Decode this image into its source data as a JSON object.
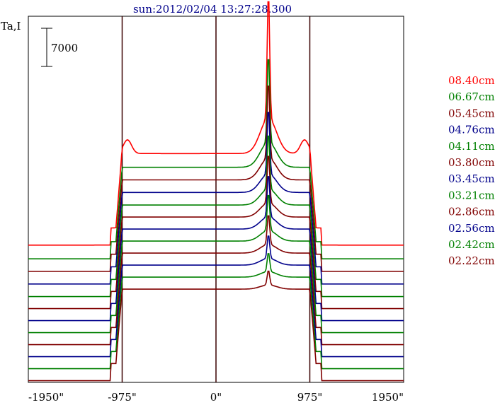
{
  "chart_data": {
    "type": "line",
    "title": "sun:2012/02/04 13:27:28.300",
    "ylabel": "Ta,I",
    "scale_bar_label": "7000",
    "xlim": [
      -1950,
      1950
    ],
    "x_ticks": [
      {
        "value": -1950,
        "label": "-1950\""
      },
      {
        "value": -975,
        "label": "-975\""
      },
      {
        "value": 0,
        "label": "0\""
      },
      {
        "value": 975,
        "label": "975\""
      },
      {
        "value": 1950,
        "label": "1950\""
      }
    ],
    "vertical_lines": [
      -975,
      0,
      975
    ],
    "x": [
      -1950,
      -1600,
      -1300,
      -1100,
      -1040,
      -1000,
      -975,
      -950,
      -900,
      -700,
      -500,
      -300,
      -130,
      -100,
      -60,
      0,
      200,
      300,
      400,
      450,
      500,
      520,
      545,
      565,
      590,
      610,
      640,
      700,
      800,
      900,
      975,
      1030,
      1100,
      1300,
      1600,
      1950
    ],
    "profile_shape": {
      "limb_peak_factor": 0.15,
      "series_peak_heights": [
        11000,
        7800,
        6800,
        5800,
        5000,
        4400,
        3800,
        3300,
        2700,
        2100,
        1700,
        1300
      ],
      "limb_bump_heights": [
        1200,
        0,
        0,
        0,
        0,
        0,
        0,
        0,
        0,
        0,
        0,
        0
      ]
    },
    "series": [
      {
        "name": "08.40cm",
        "color": "#ff0000",
        "offset": 12000
      },
      {
        "name": "06.67cm",
        "color": "#008000",
        "offset": 10800
      },
      {
        "name": "05.45cm",
        "color": "#800000",
        "offset": 9700
      },
      {
        "name": "04.76cm",
        "color": "#00008b",
        "offset": 8600
      },
      {
        "name": "04.11cm",
        "color": "#008000",
        "offset": 7500
      },
      {
        "name": "03.80cm",
        "color": "#800000",
        "offset": 6450
      },
      {
        "name": "03.45cm",
        "color": "#00008b",
        "offset": 5400
      },
      {
        "name": "03.21cm",
        "color": "#008000",
        "offset": 4350
      },
      {
        "name": "02.86cm",
        "color": "#800000",
        "offset": 3300
      },
      {
        "name": "02.56cm",
        "color": "#00008b",
        "offset": 2250
      },
      {
        "name": "02.42cm",
        "color": "#008000",
        "offset": 1200
      },
      {
        "name": "02.22cm",
        "color": "#800000",
        "offset": 150
      }
    ],
    "ylim": [
      0,
      32000
    ],
    "base_values": {
      "disk": 8000,
      "limb_rise_start": 1200
    },
    "legend_position": "right"
  }
}
